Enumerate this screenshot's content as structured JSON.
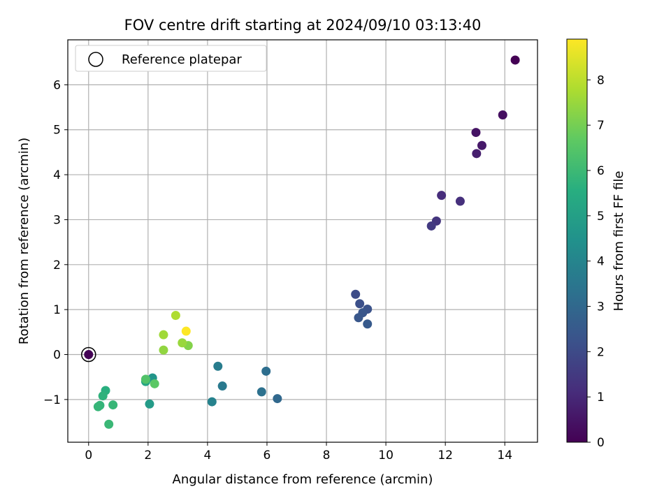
{
  "chart_data": {
    "type": "scatter",
    "title": "FOV centre drift starting at 2024/09/10 03:13:40",
    "xlabel": "Angular distance from reference (arcmin)",
    "ylabel": "Rotation from reference (arcmin)",
    "xlim": [
      -0.7,
      15.1
    ],
    "ylim": [
      -1.95,
      7.0
    ],
    "xticks": [
      0,
      2,
      4,
      6,
      8,
      10,
      12,
      14
    ],
    "yticks": [
      -1,
      0,
      1,
      2,
      3,
      4,
      5,
      6
    ],
    "grid": true,
    "legend": {
      "placement": "upper-left",
      "entries": [
        "Reference platepar"
      ]
    },
    "colorbar": {
      "label": "Hours from first FF file",
      "colormap": "viridis",
      "range": [
        0,
        8.9
      ],
      "ticks": [
        0,
        1,
        2,
        3,
        4,
        5,
        6,
        7,
        8
      ]
    },
    "reference_point": {
      "x": 0,
      "y": 0
    },
    "points": [
      {
        "x": 14.35,
        "y": 6.55,
        "c": 0.0
      },
      {
        "x": 0.0,
        "y": 0.0,
        "c": 0.05
      },
      {
        "x": 13.93,
        "y": 5.33,
        "c": 0.35
      },
      {
        "x": 13.03,
        "y": 4.94,
        "c": 0.45
      },
      {
        "x": 13.23,
        "y": 4.65,
        "c": 0.6
      },
      {
        "x": 13.05,
        "y": 4.47,
        "c": 0.75
      },
      {
        "x": 11.87,
        "y": 3.54,
        "c": 1.1
      },
      {
        "x": 12.5,
        "y": 3.41,
        "c": 1.2
      },
      {
        "x": 11.7,
        "y": 2.97,
        "c": 1.35
      },
      {
        "x": 11.53,
        "y": 2.86,
        "c": 1.5
      },
      {
        "x": 8.98,
        "y": 1.34,
        "c": 2.05
      },
      {
        "x": 9.12,
        "y": 1.13,
        "c": 2.15
      },
      {
        "x": 9.38,
        "y": 1.01,
        "c": 2.25
      },
      {
        "x": 9.22,
        "y": 0.93,
        "c": 2.35
      },
      {
        "x": 9.08,
        "y": 0.82,
        "c": 2.4
      },
      {
        "x": 9.38,
        "y": 0.68,
        "c": 2.5
      },
      {
        "x": 6.35,
        "y": -0.98,
        "c": 3.0
      },
      {
        "x": 5.97,
        "y": -0.37,
        "c": 3.2
      },
      {
        "x": 5.82,
        "y": -0.83,
        "c": 3.3
      },
      {
        "x": 4.5,
        "y": -0.7,
        "c": 3.6
      },
      {
        "x": 4.35,
        "y": -0.26,
        "c": 3.7
      },
      {
        "x": 4.15,
        "y": -1.05,
        "c": 3.9
      },
      {
        "x": 2.15,
        "y": -0.52,
        "c": 4.6
      },
      {
        "x": 2.05,
        "y": -1.1,
        "c": 4.85
      },
      {
        "x": 1.92,
        "y": -0.6,
        "c": 5.2
      },
      {
        "x": 0.57,
        "y": -0.8,
        "c": 5.6
      },
      {
        "x": 0.48,
        "y": -0.92,
        "c": 5.7
      },
      {
        "x": 0.38,
        "y": -1.13,
        "c": 5.8
      },
      {
        "x": 0.32,
        "y": -1.16,
        "c": 5.85
      },
      {
        "x": 0.82,
        "y": -1.12,
        "c": 5.9
      },
      {
        "x": 0.68,
        "y": -1.55,
        "c": 5.95
      },
      {
        "x": 1.92,
        "y": -0.55,
        "c": 6.4
      },
      {
        "x": 2.22,
        "y": -0.65,
        "c": 6.6
      },
      {
        "x": 3.35,
        "y": 0.2,
        "c": 7.2
      },
      {
        "x": 2.52,
        "y": 0.1,
        "c": 7.4
      },
      {
        "x": 3.15,
        "y": 0.26,
        "c": 7.5
      },
      {
        "x": 2.52,
        "y": 0.44,
        "c": 7.6
      },
      {
        "x": 2.93,
        "y": 0.87,
        "c": 7.8
      },
      {
        "x": 3.28,
        "y": 0.52,
        "c": 8.9
      }
    ]
  }
}
